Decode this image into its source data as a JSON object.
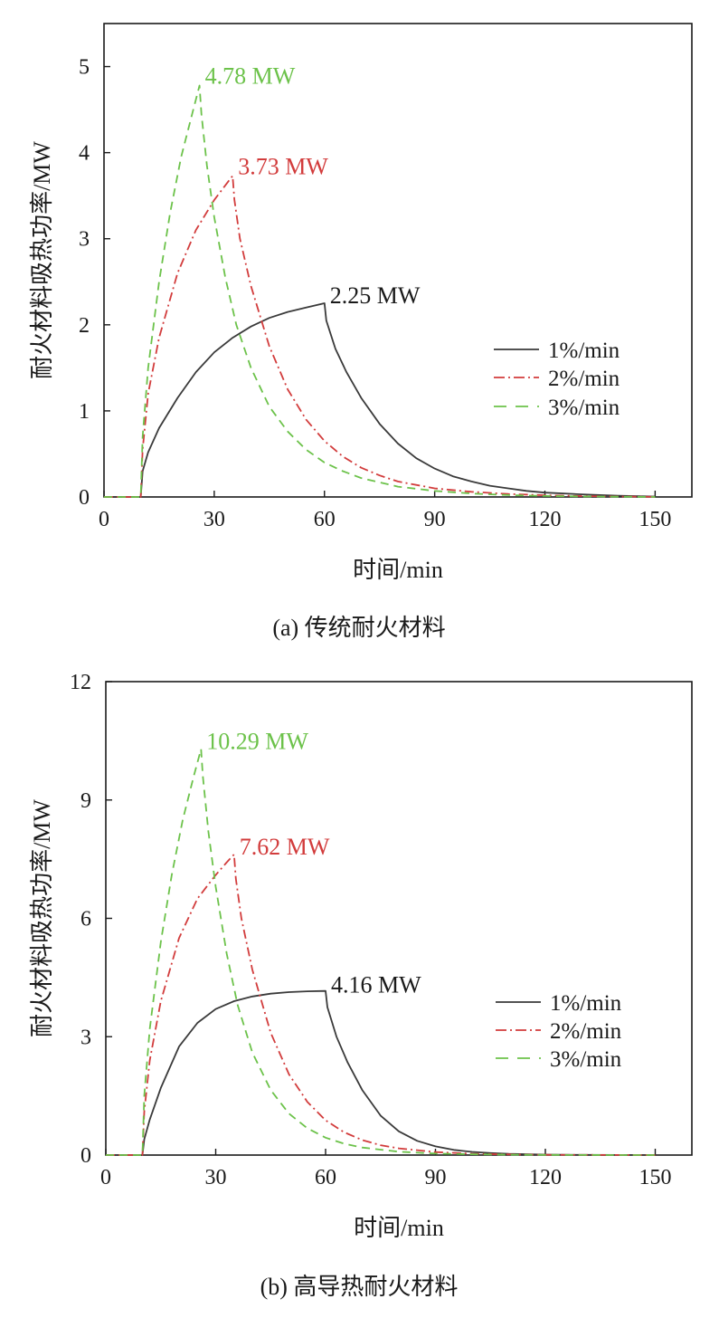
{
  "chart_data": [
    {
      "type": "line",
      "caption": "(a) 传统耐火材料",
      "xlabel": "时间/min",
      "ylabel": "耐火材料吸热功率/MW",
      "xlim": [
        0,
        160
      ],
      "ylim": [
        0,
        5.5
      ],
      "xticks": [
        0,
        30,
        60,
        90,
        120,
        150
      ],
      "yticks": [
        0,
        1,
        2,
        3,
        4,
        5
      ],
      "grid": false,
      "legend": "right",
      "series": [
        {
          "name": "1%/min",
          "color": "#3a3a3a",
          "dash": "solid",
          "peak_label": "2.25 MW",
          "points": [
            [
              0,
              0
            ],
            [
              10,
              0
            ],
            [
              10.5,
              0.3
            ],
            [
              12,
              0.52
            ],
            [
              15,
              0.8
            ],
            [
              20,
              1.15
            ],
            [
              25,
              1.45
            ],
            [
              30,
              1.68
            ],
            [
              35,
              1.85
            ],
            [
              40,
              1.98
            ],
            [
              45,
              2.08
            ],
            [
              50,
              2.15
            ],
            [
              55,
              2.2
            ],
            [
              60,
              2.25
            ],
            [
              60.5,
              2.05
            ],
            [
              63,
              1.72
            ],
            [
              66,
              1.45
            ],
            [
              70,
              1.15
            ],
            [
              75,
              0.85
            ],
            [
              80,
              0.62
            ],
            [
              85,
              0.45
            ],
            [
              90,
              0.33
            ],
            [
              95,
              0.24
            ],
            [
              100,
              0.18
            ],
            [
              105,
              0.13
            ],
            [
              110,
              0.1
            ],
            [
              115,
              0.07
            ],
            [
              120,
              0.05
            ],
            [
              130,
              0.03
            ],
            [
              140,
              0.015
            ],
            [
              150,
              0.005
            ]
          ]
        },
        {
          "name": "2%/min",
          "color": "#d23c3c",
          "dash": "dashdot",
          "peak_label": "3.73 MW",
          "points": [
            [
              0,
              0
            ],
            [
              10,
              0
            ],
            [
              10.5,
              0.55
            ],
            [
              12,
              1.2
            ],
            [
              15,
              1.85
            ],
            [
              20,
              2.6
            ],
            [
              25,
              3.1
            ],
            [
              30,
              3.45
            ],
            [
              33,
              3.62
            ],
            [
              35,
              3.73
            ],
            [
              35.5,
              3.45
            ],
            [
              37,
              3.0
            ],
            [
              40,
              2.45
            ],
            [
              45,
              1.75
            ],
            [
              50,
              1.25
            ],
            [
              55,
              0.9
            ],
            [
              60,
              0.65
            ],
            [
              65,
              0.47
            ],
            [
              70,
              0.34
            ],
            [
              75,
              0.25
            ],
            [
              80,
              0.18
            ],
            [
              90,
              0.1
            ],
            [
              100,
              0.06
            ],
            [
              110,
              0.035
            ],
            [
              120,
              0.02
            ],
            [
              130,
              0.01
            ],
            [
              140,
              0.005
            ],
            [
              150,
              0.002
            ]
          ]
        },
        {
          "name": "3%/min",
          "color": "#6cc24a",
          "dash": "dashed",
          "peak_label": "4.78 MW",
          "points": [
            [
              0,
              0
            ],
            [
              10,
              0
            ],
            [
              10.5,
              0.7
            ],
            [
              12,
              1.5
            ],
            [
              15,
              2.5
            ],
            [
              18,
              3.3
            ],
            [
              21,
              3.95
            ],
            [
              24,
              4.45
            ],
            [
              26,
              4.78
            ],
            [
              26.5,
              4.45
            ],
            [
              28,
              3.85
            ],
            [
              30,
              3.25
            ],
            [
              33,
              2.55
            ],
            [
              36,
              2.0
            ],
            [
              40,
              1.5
            ],
            [
              45,
              1.05
            ],
            [
              50,
              0.76
            ],
            [
              55,
              0.55
            ],
            [
              60,
              0.4
            ],
            [
              65,
              0.3
            ],
            [
              70,
              0.22
            ],
            [
              80,
              0.12
            ],
            [
              90,
              0.07
            ],
            [
              100,
              0.04
            ],
            [
              110,
              0.022
            ],
            [
              120,
              0.012
            ],
            [
              130,
              0.006
            ],
            [
              140,
              0.003
            ],
            [
              150,
              0.001
            ]
          ]
        }
      ]
    },
    {
      "type": "line",
      "caption": "(b) 高导热耐火材料",
      "xlabel": "时间/min",
      "ylabel": "耐火材料吸热功率/MW",
      "xlim": [
        0,
        160
      ],
      "ylim": [
        0,
        12
      ],
      "xticks": [
        0,
        30,
        60,
        90,
        120,
        150
      ],
      "yticks": [
        0,
        3,
        6,
        9,
        12
      ],
      "grid": false,
      "legend": "right",
      "series": [
        {
          "name": "1%/min",
          "color": "#3a3a3a",
          "dash": "solid",
          "peak_label": "4.16 MW",
          "points": [
            [
              0,
              0
            ],
            [
              10,
              0
            ],
            [
              10.5,
              0.4
            ],
            [
              12,
              0.9
            ],
            [
              15,
              1.7
            ],
            [
              20,
              2.75
            ],
            [
              25,
              3.35
            ],
            [
              30,
              3.7
            ],
            [
              35,
              3.9
            ],
            [
              40,
              4.02
            ],
            [
              45,
              4.09
            ],
            [
              50,
              4.13
            ],
            [
              55,
              4.15
            ],
            [
              60,
              4.16
            ],
            [
              60.5,
              3.75
            ],
            [
              63,
              3.0
            ],
            [
              66,
              2.35
            ],
            [
              70,
              1.65
            ],
            [
              75,
              1.0
            ],
            [
              80,
              0.6
            ],
            [
              85,
              0.36
            ],
            [
              90,
              0.22
            ],
            [
              95,
              0.13
            ],
            [
              100,
              0.08
            ],
            [
              105,
              0.05
            ],
            [
              110,
              0.03
            ],
            [
              120,
              0.012
            ],
            [
              130,
              0.005
            ],
            [
              140,
              0.002
            ],
            [
              150,
              0.001
            ]
          ]
        },
        {
          "name": "2%/min",
          "color": "#d23c3c",
          "dash": "dashdot",
          "peak_label": "7.62 MW",
          "points": [
            [
              0,
              0
            ],
            [
              10,
              0
            ],
            [
              10.5,
              1.1
            ],
            [
              12,
              2.4
            ],
            [
              15,
              3.9
            ],
            [
              20,
              5.5
            ],
            [
              25,
              6.5
            ],
            [
              30,
              7.1
            ],
            [
              33,
              7.42
            ],
            [
              35,
              7.62
            ],
            [
              35.5,
              7.0
            ],
            [
              37,
              6.0
            ],
            [
              40,
              4.7
            ],
            [
              45,
              3.1
            ],
            [
              50,
              2.05
            ],
            [
              55,
              1.35
            ],
            [
              60,
              0.88
            ],
            [
              65,
              0.58
            ],
            [
              70,
              0.38
            ],
            [
              75,
              0.25
            ],
            [
              80,
              0.17
            ],
            [
              90,
              0.075
            ],
            [
              100,
              0.035
            ],
            [
              110,
              0.016
            ],
            [
              120,
              0.008
            ],
            [
              130,
              0.004
            ],
            [
              140,
              0.002
            ],
            [
              150,
              0.001
            ]
          ]
        },
        {
          "name": "3%/min",
          "color": "#6cc24a",
          "dash": "dashed",
          "peak_label": "10.29 MW",
          "points": [
            [
              0,
              0
            ],
            [
              10,
              0
            ],
            [
              10.5,
              1.5
            ],
            [
              12,
              3.2
            ],
            [
              15,
              5.4
            ],
            [
              18,
              7.1
            ],
            [
              21,
              8.5
            ],
            [
              24,
              9.6
            ],
            [
              26,
              10.29
            ],
            [
              26.5,
              9.6
            ],
            [
              28,
              8.2
            ],
            [
              30,
              6.8
            ],
            [
              33,
              5.1
            ],
            [
              36,
              3.8
            ],
            [
              40,
              2.6
            ],
            [
              45,
              1.65
            ],
            [
              50,
              1.05
            ],
            [
              55,
              0.68
            ],
            [
              60,
              0.44
            ],
            [
              65,
              0.29
            ],
            [
              70,
              0.19
            ],
            [
              80,
              0.085
            ],
            [
              90,
              0.04
            ],
            [
              100,
              0.02
            ],
            [
              110,
              0.01
            ],
            [
              120,
              0.005
            ],
            [
              130,
              0.002
            ],
            [
              140,
              0.001
            ],
            [
              150,
              0.0005
            ]
          ]
        }
      ]
    }
  ]
}
